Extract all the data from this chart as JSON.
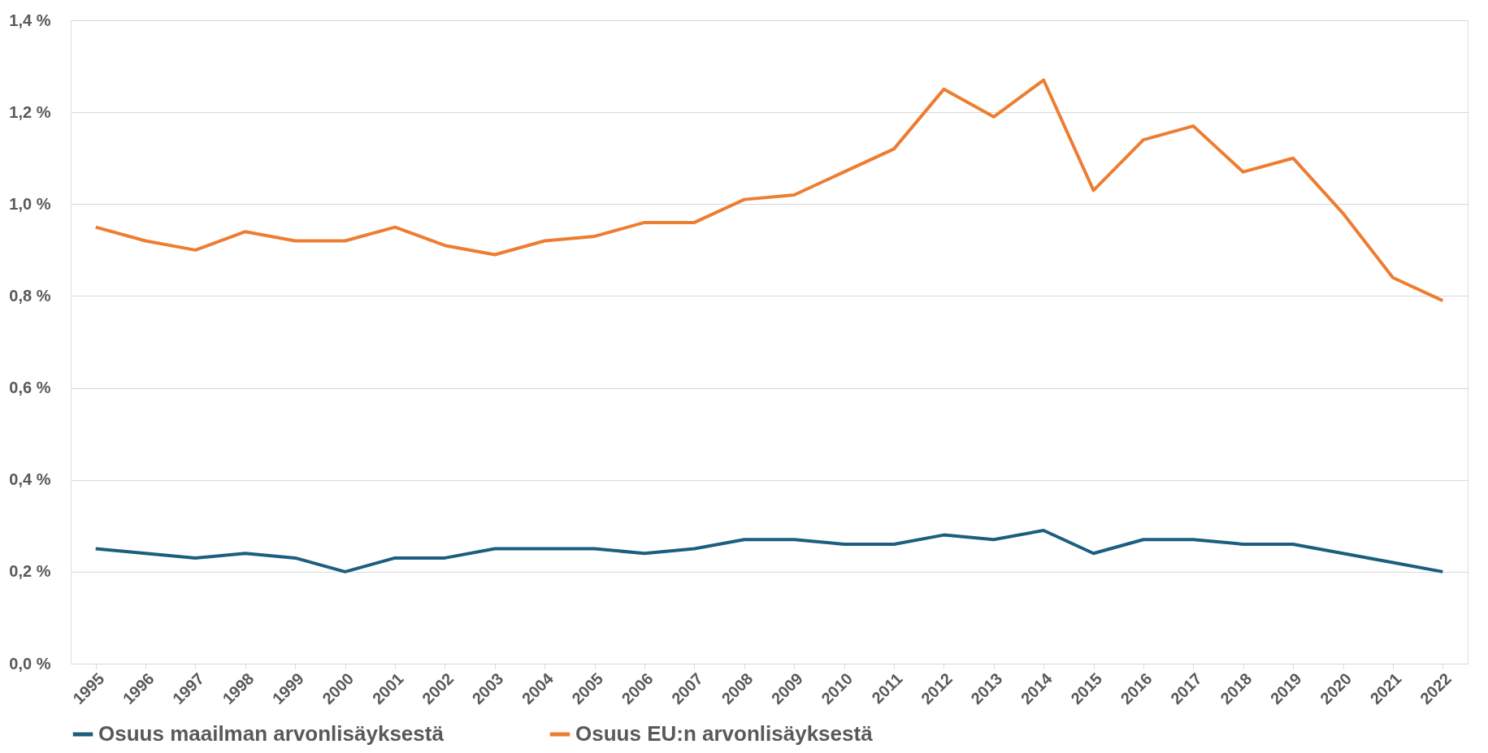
{
  "chart_data": {
    "type": "line",
    "categories": [
      "1995",
      "1996",
      "1997",
      "1998",
      "1999",
      "2000",
      "2001",
      "2002",
      "2003",
      "2004",
      "2005",
      "2006",
      "2007",
      "2008",
      "2009",
      "2010",
      "2011",
      "2012",
      "2013",
      "2014",
      "2015",
      "2016",
      "2017",
      "2018",
      "2019",
      "2020",
      "2021",
      "2022"
    ],
    "series": [
      {
        "name": "Osuus maailman arvonlisäyksestä",
        "color": "#1b5e7e",
        "values": [
          0.25,
          0.24,
          0.23,
          0.24,
          0.23,
          0.2,
          0.23,
          0.23,
          0.25,
          0.25,
          0.25,
          0.24,
          0.25,
          0.27,
          0.27,
          0.26,
          0.26,
          0.28,
          0.27,
          0.29,
          0.24,
          0.27,
          0.27,
          0.26,
          0.26,
          0.24,
          0.22,
          0.2
        ]
      },
      {
        "name": "Osuus EU:n arvonlisäyksestä",
        "color": "#ed7d31",
        "values": [
          0.95,
          0.92,
          0.9,
          0.94,
          0.92,
          0.92,
          0.95,
          0.91,
          0.89,
          0.92,
          0.93,
          0.96,
          0.96,
          1.01,
          1.02,
          1.07,
          1.12,
          1.25,
          1.19,
          1.27,
          1.03,
          1.14,
          1.17,
          1.07,
          1.1,
          0.98,
          0.84,
          0.79
        ]
      }
    ],
    "ylim": [
      0,
      1.4
    ],
    "yticks": [
      {
        "value": 0,
        "label": "0,0 %"
      },
      {
        "value": 0.2,
        "label": "0,2 %"
      },
      {
        "value": 0.4,
        "label": "0,4 %"
      },
      {
        "value": 0.6,
        "label": "0,6 %"
      },
      {
        "value": 0.8,
        "label": "0,8 %"
      },
      {
        "value": 1,
        "label": "1,0 %"
      },
      {
        "value": 1.2,
        "label": "1,2 %"
      },
      {
        "value": 1.4,
        "label": "1,4 %"
      }
    ],
    "grid": "y",
    "legend": "bottom",
    "marker": "none",
    "line_style": "solid"
  }
}
